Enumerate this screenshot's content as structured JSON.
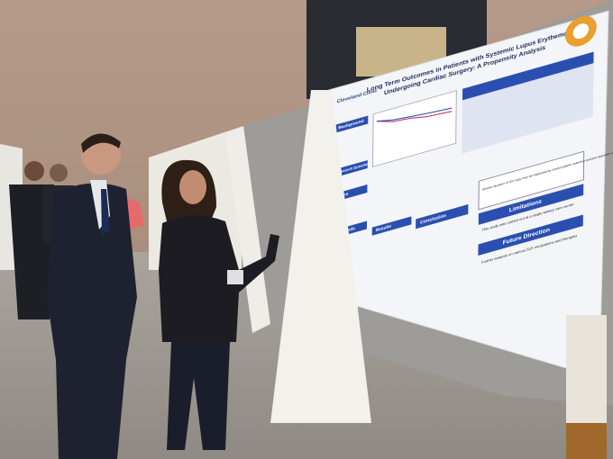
{
  "poster": {
    "institution": "Cleveland Clinic",
    "title": [
      "Long Term Outcomes in Patients with Systemic Lupus Erythematosus",
      "Undergoing Cardiac Surgery: A Propensity Analysis"
    ],
    "sections": {
      "background": "Background",
      "research_question": "Research Question",
      "aims": "Aims",
      "methods": "Methods",
      "results": "Results",
      "conclusion": "Conclusion",
      "limitations": "Limitations",
      "future_direction": "Future Direction"
    },
    "discussion_text": "Shorter duration of ICU stay may be explained by careful patient selection and pre-operative optimization in the SLE",
    "limitations_text": "This study was carried out at a single tertiary care center",
    "future_text": "Further analysis on various SLE medications and therapies"
  }
}
